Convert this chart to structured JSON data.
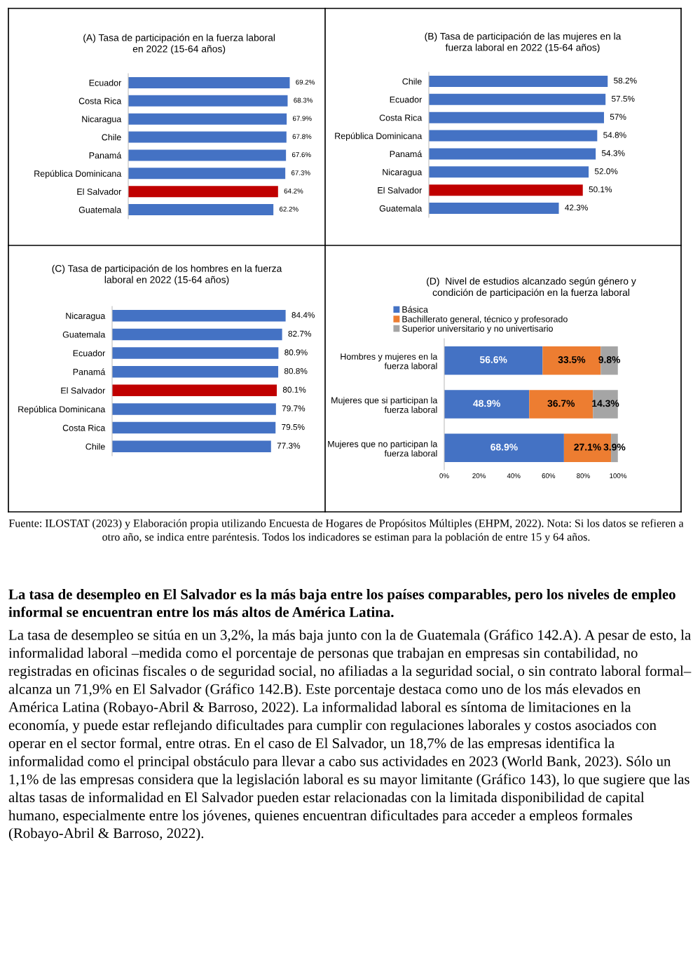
{
  "chart_data": [
    {
      "type": "bar",
      "orientation": "horizontal",
      "title": "(A) Tasa de participación en la fuerza laboral\nen 2022 (15-64 años)",
      "tick_labels": "y",
      "categories": [
        "Ecuador",
        "Costa Rica",
        "Nicaragua",
        "Chile",
        "Panamá",
        "República Dominicana",
        "El Salvador",
        "Guatemala"
      ],
      "values": [
        69.2,
        68.3,
        67.9,
        67.8,
        67.6,
        67.3,
        64.2,
        62.2
      ],
      "value_labels": [
        "69.2%",
        "68.3%",
        "67.9%",
        "67.8%",
        "67.6%",
        "67.3%",
        "64.2%",
        "62.2%"
      ],
      "colors": [
        "#4472c4",
        "#4472c4",
        "#4472c4",
        "#4472c4",
        "#4472c4",
        "#4472c4",
        "#c00000",
        "#4472c4"
      ]
    },
    {
      "type": "bar",
      "orientation": "horizontal",
      "title": "(B) Tasa de participación de las mujeres en la\nfuerza laboral en 2022 (15-64 años)",
      "tick_labels": "y",
      "categories": [
        "Chile",
        "Ecuador",
        "Costa Rica",
        "República Dominicana",
        "Panamá",
        "Nicaragua",
        "El Salvador",
        "Guatemala"
      ],
      "values": [
        58.2,
        57.5,
        57,
        54.8,
        54.3,
        52.0,
        50.1,
        42.3
      ],
      "value_labels": [
        "58.2%",
        "57.5%",
        "57%",
        "54.8%",
        "54.3%",
        "52.0%",
        "50.1%",
        "42.3%"
      ],
      "colors": [
        "#4472c4",
        "#4472c4",
        "#4472c4",
        "#4472c4",
        "#4472c4",
        "#4472c4",
        "#c00000",
        "#4472c4"
      ]
    },
    {
      "type": "bar",
      "orientation": "horizontal",
      "title": "(C) Tasa de participación de los hombres en la fuerza\nlaboral en 2022 (15-64 años)",
      "tick_labels": "y",
      "categories": [
        "Nicaragua",
        "Guatemala",
        "Ecuador",
        "Panamá",
        "El Salvador",
        "República Dominicana",
        "Costa Rica",
        "Chile"
      ],
      "values": [
        84.4,
        82.7,
        80.9,
        80.8,
        80.1,
        79.7,
        79.5,
        77.3
      ],
      "value_labels": [
        "84.4%",
        "82.7%",
        "80.9%",
        "80.8%",
        "80.1%",
        "79.7%",
        "79.5%",
        "77.3%"
      ],
      "colors": [
        "#4472c4",
        "#4472c4",
        "#4472c4",
        "#4472c4",
        "#c00000",
        "#4472c4",
        "#4472c4",
        "#4472c4"
      ]
    },
    {
      "type": "bar",
      "orientation": "horizontal",
      "stacked": true,
      "legend": "top",
      "title": "(D)  Nivel de estudios alcanzado según género y\ncondición de participación en la fuerza laboral",
      "xlim": [
        0,
        100
      ],
      "xticks": [
        {
          "value": 0,
          "label": "0%"
        },
        {
          "value": 20,
          "label": "20%"
        },
        {
          "value": 40,
          "label": "40%"
        },
        {
          "value": 60,
          "label": "60%"
        },
        {
          "value": 80,
          "label": "80%"
        },
        {
          "value": 100,
          "label": "100%"
        }
      ],
      "categories": [
        "Hombres y mujeres en la\nfuerza laboral",
        "Mujeres que si participan la\nfuerza laboral",
        "Mujeres que no participan la\nfuerza laboral"
      ],
      "series": [
        {
          "name": "Básica",
          "color": "#4472c4",
          "values": [
            56.6,
            48.9,
            68.9
          ],
          "value_labels": [
            "56.6%",
            "48.9%",
            "68.9%"
          ]
        },
        {
          "name": "Bachillerato general, técnico y profesorado",
          "color": "#ed7d31",
          "values": [
            33.5,
            36.7,
            27.1
          ],
          "value_labels": [
            "33.5%",
            "36.7%",
            "27.1%"
          ]
        },
        {
          "name": "Superior universitario y no univertisario",
          "color": "#a5a5a5",
          "values": [
            9.8,
            14.3,
            3.9
          ],
          "value_labels": [
            "9.8%",
            "14.3%",
            "3.9%"
          ]
        }
      ]
    },
    {
      "type": "other",
      "annotations": [
        "Fuente: ILOSTAT (2023) y Elaboración propia utilizando Encuesta de Hogares de Propósitos Múltiples (EHPM, 2022). Nota: Si los datos se refieren a otro año, se indica entre paréntesis. Todos los indicadores se estiman para la población de entre 15 y 64 años.",
        "La tasa de desempleo en El Salvador es la más baja entre los países comparables, pero los niveles de empleo informal se encuentran entre los más altos de América Latina.",
        "La tasa de desempleo se sitúa en un 3,2%, la más baja junto con la de Guatemala (Gráfico 142.A). A pesar de esto, la informalidad laboral –medida como el porcentaje de personas que trabajan en empresas sin contabilidad, no registradas en oficinas fiscales o de seguridad social, no afiliadas a la seguridad social, o sin contrato laboral formal– alcanza un 71,9% en El Salvador (Gráfico 142.B). Este porcentaje destaca como uno de los más elevados en América Latina (Robayo-Abril & Barroso, 2022). La informalidad laboral es síntoma de limitaciones en la economía, y puede estar reflejando dificultades para cumplir con regulaciones laborales y costos asociados con operar en el sector formal, entre otras. En el caso de El Salvador, un 18,7% de las empresas identifica la informalidad como el principal obstáculo para llevar a cabo sus actividades en 2023 (World Bank, 2023). Sólo un 1,1% de las empresas considera que la legislación laboral es su mayor limitante (Gráfico 143), lo que sugiere que las altas tasas de informalidad en El Salvador pueden estar relacionadas con la limitada disponibilidad de capital humano, especialmente entre los jóvenes, quienes encuentran dificultades para acceder a empleos formales (Robayo-Abril & Barroso, 2022)."
      ]
    }
  ]
}
